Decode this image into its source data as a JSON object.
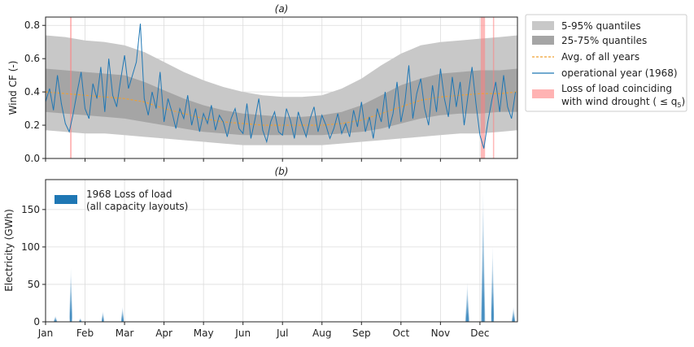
{
  "chart_data": [
    {
      "type": "line",
      "panel_label": "(a)",
      "ylabel": "Wind CF (-)",
      "ylim": [
        0,
        0.85
      ],
      "yticks": [
        0.0,
        0.2,
        0.4,
        0.6,
        0.8
      ],
      "ytick_labels": [
        "0.0",
        "0.2",
        "0.4",
        "0.6",
        "0.8"
      ],
      "grid": true,
      "legend_position": "outside-right",
      "x_units": "month (1 = Jan)",
      "legend": [
        {
          "label": "5-95% quantiles",
          "kind": "patch",
          "color": "#c8c8c8"
        },
        {
          "label": "25-75% quantiles",
          "kind": "patch",
          "color": "#a5a5a5"
        },
        {
          "label": "Avg. of all years",
          "kind": "dashed-line",
          "color": "#f0a030"
        },
        {
          "label": "operational year (1968)",
          "kind": "line",
          "color": "#1f77b4"
        },
        {
          "label": "Loss of load coinciding",
          "label_line2": "with wind drought ( ≤ q",
          "label_sub": "5",
          "label_end": ")",
          "kind": "patch",
          "color": "#ffb3b3"
        }
      ],
      "series": [
        {
          "name": "5-95% quantiles",
          "kind": "band",
          "x": [
            1.0,
            1.5,
            2.0,
            2.5,
            3.0,
            3.5,
            4.0,
            4.5,
            5.0,
            5.5,
            6.0,
            6.5,
            7.0,
            7.5,
            8.0,
            8.5,
            9.0,
            9.5,
            10.0,
            10.5,
            11.0,
            11.5,
            12.0,
            12.5,
            12.95
          ],
          "lower": [
            0.17,
            0.16,
            0.15,
            0.15,
            0.14,
            0.13,
            0.12,
            0.11,
            0.1,
            0.09,
            0.08,
            0.08,
            0.08,
            0.08,
            0.08,
            0.09,
            0.1,
            0.11,
            0.12,
            0.13,
            0.14,
            0.15,
            0.15,
            0.16,
            0.17
          ],
          "upper": [
            0.74,
            0.73,
            0.71,
            0.7,
            0.68,
            0.64,
            0.58,
            0.52,
            0.47,
            0.43,
            0.4,
            0.38,
            0.37,
            0.37,
            0.38,
            0.42,
            0.48,
            0.56,
            0.63,
            0.68,
            0.7,
            0.71,
            0.72,
            0.73,
            0.74
          ]
        },
        {
          "name": "25-75% quantiles",
          "kind": "band",
          "x": [
            1.0,
            1.5,
            2.0,
            2.5,
            3.0,
            3.5,
            4.0,
            4.5,
            5.0,
            5.5,
            6.0,
            6.5,
            7.0,
            7.5,
            8.0,
            8.5,
            9.0,
            9.5,
            10.0,
            10.5,
            11.0,
            11.5,
            12.0,
            12.5,
            12.95
          ],
          "lower": [
            0.28,
            0.27,
            0.26,
            0.25,
            0.24,
            0.22,
            0.2,
            0.18,
            0.16,
            0.15,
            0.14,
            0.14,
            0.14,
            0.14,
            0.14,
            0.15,
            0.16,
            0.18,
            0.21,
            0.24,
            0.26,
            0.27,
            0.27,
            0.28,
            0.28
          ],
          "upper": [
            0.54,
            0.53,
            0.52,
            0.51,
            0.5,
            0.46,
            0.41,
            0.36,
            0.32,
            0.29,
            0.27,
            0.26,
            0.25,
            0.25,
            0.26,
            0.28,
            0.32,
            0.38,
            0.44,
            0.48,
            0.51,
            0.52,
            0.53,
            0.53,
            0.54
          ]
        },
        {
          "name": "Avg. of all years",
          "kind": "line",
          "x": [
            1.0,
            1.5,
            2.0,
            2.5,
            3.0,
            3.5,
            4.0,
            4.5,
            5.0,
            5.5,
            6.0,
            6.5,
            7.0,
            7.5,
            8.0,
            8.5,
            9.0,
            9.5,
            10.0,
            10.5,
            11.0,
            11.5,
            12.0,
            12.5,
            12.95
          ],
          "y": [
            0.4,
            0.39,
            0.38,
            0.37,
            0.36,
            0.34,
            0.3,
            0.27,
            0.24,
            0.22,
            0.21,
            0.2,
            0.2,
            0.2,
            0.2,
            0.21,
            0.23,
            0.27,
            0.31,
            0.35,
            0.37,
            0.38,
            0.39,
            0.39,
            0.4
          ]
        },
        {
          "name": "operational year (1968)",
          "kind": "line",
          "x": [
            1.0,
            1.1,
            1.2,
            1.3,
            1.4,
            1.5,
            1.6,
            1.7,
            1.8,
            1.9,
            2.0,
            2.1,
            2.2,
            2.3,
            2.4,
            2.5,
            2.6,
            2.7,
            2.8,
            2.9,
            3.0,
            3.1,
            3.2,
            3.3,
            3.4,
            3.5,
            3.6,
            3.7,
            3.8,
            3.9,
            4.0,
            4.1,
            4.2,
            4.3,
            4.4,
            4.5,
            4.6,
            4.7,
            4.8,
            4.9,
            5.0,
            5.1,
            5.2,
            5.3,
            5.4,
            5.5,
            5.6,
            5.7,
            5.8,
            5.9,
            6.0,
            6.1,
            6.2,
            6.3,
            6.4,
            6.5,
            6.6,
            6.7,
            6.8,
            6.9,
            7.0,
            7.1,
            7.2,
            7.3,
            7.4,
            7.5,
            7.6,
            7.7,
            7.8,
            7.9,
            8.0,
            8.1,
            8.2,
            8.3,
            8.4,
            8.5,
            8.6,
            8.7,
            8.8,
            8.9,
            9.0,
            9.1,
            9.2,
            9.3,
            9.4,
            9.5,
            9.6,
            9.7,
            9.8,
            9.9,
            10.0,
            10.1,
            10.2,
            10.3,
            10.4,
            10.5,
            10.6,
            10.7,
            10.8,
            10.9,
            11.0,
            11.1,
            11.2,
            11.3,
            11.4,
            11.5,
            11.6,
            11.7,
            11.8,
            11.9,
            12.0,
            12.1,
            12.2,
            12.3,
            12.4,
            12.5,
            12.6,
            12.7,
            12.8,
            12.9
          ],
          "y": [
            0.34,
            0.42,
            0.29,
            0.5,
            0.33,
            0.21,
            0.16,
            0.27,
            0.4,
            0.52,
            0.3,
            0.24,
            0.45,
            0.36,
            0.55,
            0.28,
            0.6,
            0.38,
            0.31,
            0.47,
            0.62,
            0.42,
            0.5,
            0.58,
            0.81,
            0.36,
            0.26,
            0.4,
            0.3,
            0.52,
            0.22,
            0.36,
            0.28,
            0.18,
            0.3,
            0.24,
            0.38,
            0.2,
            0.3,
            0.16,
            0.27,
            0.21,
            0.32,
            0.17,
            0.26,
            0.22,
            0.13,
            0.24,
            0.3,
            0.18,
            0.15,
            0.33,
            0.12,
            0.23,
            0.36,
            0.17,
            0.1,
            0.22,
            0.28,
            0.16,
            0.14,
            0.3,
            0.23,
            0.12,
            0.28,
            0.2,
            0.13,
            0.24,
            0.31,
            0.16,
            0.26,
            0.2,
            0.12,
            0.18,
            0.27,
            0.15,
            0.21,
            0.13,
            0.29,
            0.19,
            0.34,
            0.16,
            0.25,
            0.12,
            0.3,
            0.22,
            0.4,
            0.18,
            0.27,
            0.46,
            0.22,
            0.34,
            0.56,
            0.24,
            0.39,
            0.48,
            0.3,
            0.2,
            0.44,
            0.28,
            0.54,
            0.36,
            0.25,
            0.49,
            0.31,
            0.46,
            0.2,
            0.38,
            0.55,
            0.33,
            0.14,
            0.06,
            0.22,
            0.35,
            0.46,
            0.28,
            0.5,
            0.31,
            0.24,
            0.4
          ]
        },
        {
          "name": "Loss of load coinciding with wind drought",
          "kind": "vspan",
          "spans": [
            [
              1.62,
              1.66
            ],
            [
              12.02,
              12.13
            ],
            [
              12.33,
              12.36
            ]
          ]
        }
      ]
    },
    {
      "type": "area",
      "panel_label": "(b)",
      "ylabel": "Electricity (GWh)",
      "ylim": [
        0,
        190
      ],
      "yticks": [
        0,
        50,
        100,
        150
      ],
      "ytick_labels": [
        "0",
        "50",
        "100",
        "150"
      ],
      "grid": true,
      "legend_position": "top-left",
      "legend": [
        {
          "label": "1968 Loss of load",
          "label_line2": "(all capacity layouts)",
          "kind": "patch",
          "color": "#1f77b4"
        }
      ],
      "x_units": "month (1 = Jan)",
      "xticks": [
        1,
        2,
        3,
        4,
        5,
        6,
        7,
        8,
        9,
        10,
        11,
        12
      ],
      "xtick_labels": [
        "Jan",
        "Feb",
        "Mar",
        "Apr",
        "May",
        "Jun",
        "Jul",
        "Aug",
        "Sep",
        "Oct",
        "Nov",
        "Dec"
      ],
      "xlim": [
        1,
        12.95
      ],
      "series": [
        {
          "name": "1968 Loss of load",
          "kind": "spikes",
          "events": [
            {
              "x": 1.25,
              "peak": 8,
              "width": 0.1
            },
            {
              "x": 1.64,
              "peak": 72,
              "width": 0.07
            },
            {
              "x": 1.88,
              "peak": 5,
              "width": 0.06
            },
            {
              "x": 2.45,
              "peak": 14,
              "width": 0.05
            },
            {
              "x": 2.95,
              "peak": 20,
              "width": 0.07
            },
            {
              "x": 11.68,
              "peak": 52,
              "width": 0.12
            },
            {
              "x": 12.08,
              "peak": 175,
              "width": 0.12
            },
            {
              "x": 12.32,
              "peak": 100,
              "width": 0.08
            },
            {
              "x": 12.85,
              "peak": 20,
              "width": 0.1
            }
          ]
        }
      ]
    }
  ]
}
